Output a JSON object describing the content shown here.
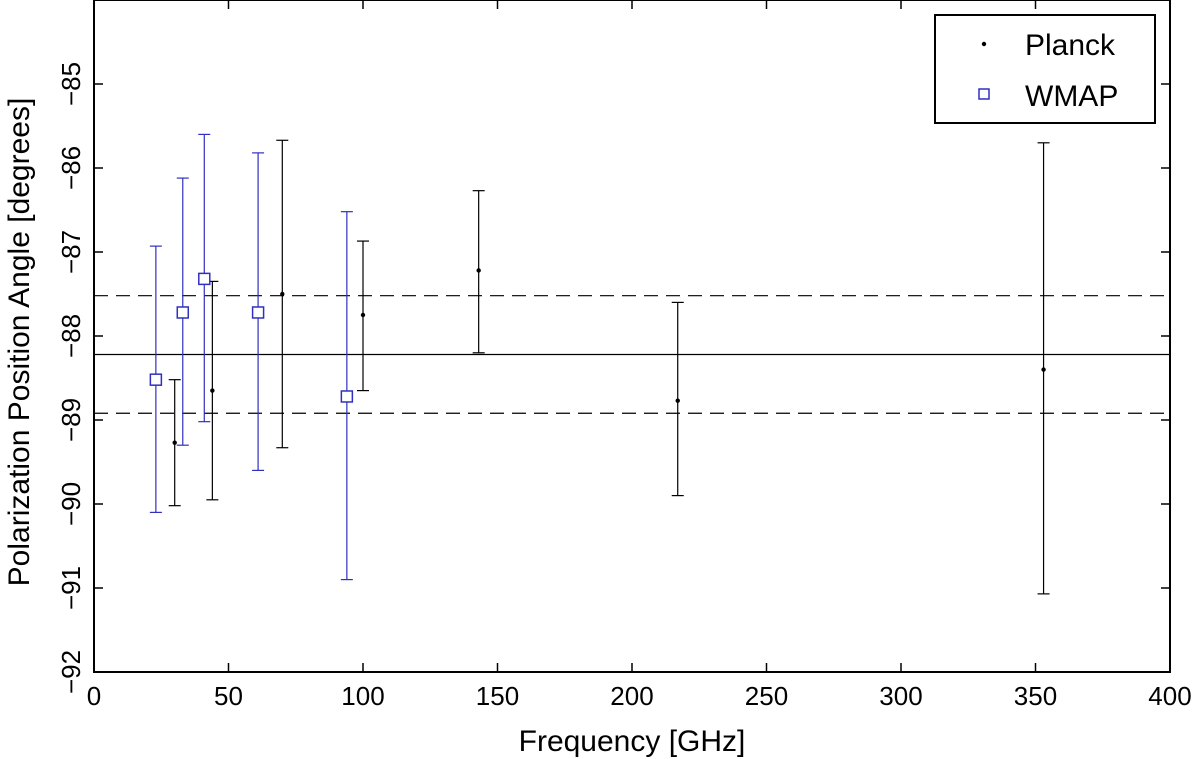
{
  "chart_data": {
    "type": "scatter",
    "title": "",
    "xlabel": "Frequency [GHz]",
    "ylabel": "Polarization Position Angle [degrees]",
    "xlim": [
      0,
      400
    ],
    "ylim": [
      -92,
      -84
    ],
    "x_ticks": [
      0,
      50,
      100,
      150,
      200,
      250,
      300,
      350,
      400
    ],
    "y_ticks": [
      -92,
      -91,
      -90,
      -89,
      -88,
      -87,
      -86,
      -85
    ],
    "grid": false,
    "legend_position": "top-right",
    "series": [
      {
        "name": "Planck",
        "color": "#000000",
        "marker": "dot",
        "points": [
          {
            "x": 30,
            "y": -89.27,
            "lo": -90.02,
            "hi": -88.52
          },
          {
            "x": 44,
            "y": -88.65,
            "lo": -89.95,
            "hi": -87.35
          },
          {
            "x": 70,
            "y": -87.5,
            "lo": -89.33,
            "hi": -85.67
          },
          {
            "x": 100,
            "y": -87.75,
            "lo": -88.65,
            "hi": -86.87
          },
          {
            "x": 143,
            "y": -87.22,
            "lo": -88.2,
            "hi": -86.27
          },
          {
            "x": 217,
            "y": -88.77,
            "lo": -89.9,
            "hi": -87.6
          },
          {
            "x": 353,
            "y": -88.4,
            "lo": -91.07,
            "hi": -85.7
          }
        ]
      },
      {
        "name": "WMAP",
        "color": "#3030c0",
        "marker": "open-square",
        "points": [
          {
            "x": 23,
            "y": -88.52,
            "lo": -90.1,
            "hi": -86.93
          },
          {
            "x": 33,
            "y": -87.72,
            "lo": -89.3,
            "hi": -86.12
          },
          {
            "x": 41,
            "y": -87.32,
            "lo": -89.02,
            "hi": -85.6
          },
          {
            "x": 61,
            "y": -87.72,
            "lo": -89.6,
            "hi": -85.82
          },
          {
            "x": 94,
            "y": -88.72,
            "lo": -90.9,
            "hi": -86.52
          }
        ]
      }
    ],
    "reference_lines": [
      {
        "y": -88.22,
        "style": "solid"
      },
      {
        "y": -87.52,
        "style": "dashed"
      },
      {
        "y": -88.92,
        "style": "dashed"
      }
    ]
  }
}
